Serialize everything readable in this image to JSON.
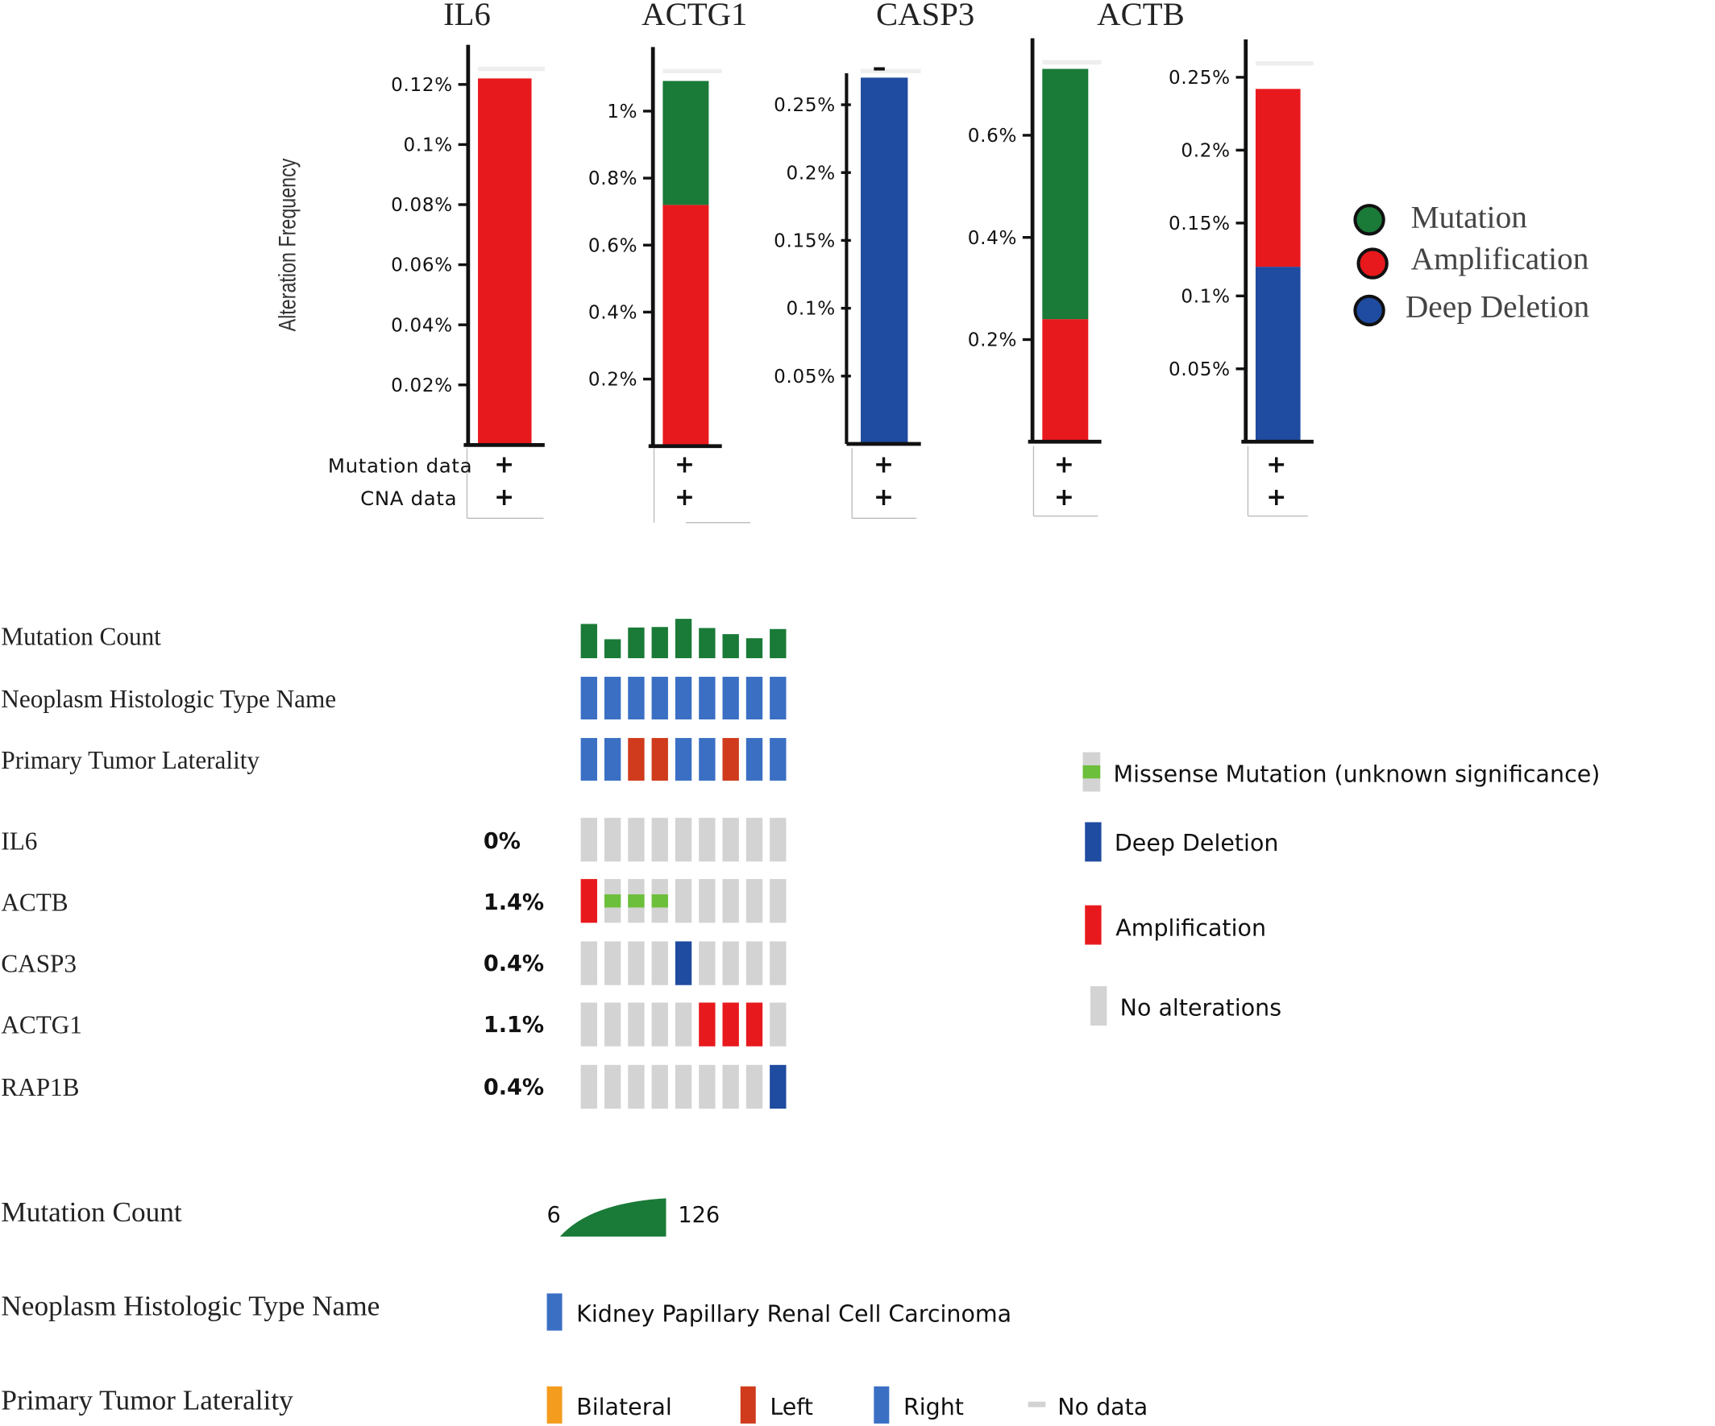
{
  "chart_data": [
    {
      "type": "bar",
      "stacked": true,
      "ylabel": "Alteration Frequency",
      "legend": {
        "placement": "right",
        "entries": [
          {
            "name": "Mutation",
            "color": "#1a7a38"
          },
          {
            "name": "Amplification",
            "color": "#e8191d"
          },
          {
            "name": "Deep Deletion",
            "color": "#1f4ba0"
          }
        ]
      },
      "annotation_rows": [
        "Mutation data",
        "CNA data"
      ],
      "panels": [
        {
          "title": "IL6",
          "yticks": [
            "0.02%",
            "0.04%",
            "0.06%",
            "0.08%",
            "0.1%",
            "0.12%"
          ],
          "ytick_values": [
            0.02,
            0.04,
            0.06,
            0.08,
            0.1,
            0.12
          ],
          "ylim": [
            0,
            0.123
          ],
          "segments": [
            {
              "name": "Amplification",
              "value": 0.122
            }
          ],
          "annotations": [
            "+",
            "+"
          ]
        },
        {
          "title": "ACTG1",
          "yticks": [
            "0.2%",
            "0.4%",
            "0.6%",
            "0.8%",
            "1%"
          ],
          "ytick_values": [
            0.2,
            0.4,
            0.6,
            0.8,
            1.0
          ],
          "ylim": [
            0,
            1.1
          ],
          "segments": [
            {
              "name": "Amplification",
              "value": 0.72
            },
            {
              "name": "Mutation",
              "value": 0.37
            }
          ],
          "annotations": [
            "+",
            "+"
          ]
        },
        {
          "title": "CASP3",
          "yticks": [
            "0.05%",
            "0.1%",
            "0.15%",
            "0.2%",
            "0.25%"
          ],
          "ytick_values": [
            0.05,
            0.1,
            0.15,
            0.2,
            0.25
          ],
          "ylim": [
            0,
            0.27
          ],
          "segments": [
            {
              "name": "Deep Deletion",
              "value": 0.27
            }
          ],
          "annotations": [
            "+",
            "+"
          ]
        },
        {
          "title": "ACTB",
          "yticks": [
            "0.2%",
            "0.4%",
            "0.6%"
          ],
          "ytick_values": [
            0.2,
            0.4,
            0.6
          ],
          "ylim": [
            0,
            0.73
          ],
          "segments": [
            {
              "name": "Amplification",
              "value": 0.24
            },
            {
              "name": "Mutation",
              "value": 0.49
            }
          ],
          "annotations": [
            "+",
            "+"
          ]
        },
        {
          "title": "",
          "yticks": [
            "0.05%",
            "0.1%",
            "0.15%",
            "0.2%",
            "0.25%"
          ],
          "ytick_values": [
            0.05,
            0.1,
            0.15,
            0.2,
            0.25
          ],
          "ylim": [
            0,
            0.255
          ],
          "segments": [
            {
              "name": "Deep Deletion",
              "value": 0.12
            },
            {
              "name": "Amplification",
              "value": 0.122
            }
          ],
          "annotations": [
            "+",
            "+"
          ]
        }
      ]
    },
    {
      "type": "heatmap",
      "samples": 9,
      "clinical_tracks": [
        {
          "label": "Mutation Count",
          "kind": "bars",
          "values": [
            50,
            20,
            43,
            44,
            60,
            42,
            30,
            22,
            40
          ]
        },
        {
          "label": "Neoplasm Histologic Type Name",
          "kind": "cells",
          "values": [
            "KIRP",
            "KIRP",
            "KIRP",
            "KIRP",
            "KIRP",
            "KIRP",
            "KIRP",
            "KIRP",
            "KIRP"
          ]
        },
        {
          "label": "Primary Tumor Laterality",
          "kind": "cells",
          "values": [
            "Right",
            "Right",
            "Left",
            "Left",
            "Right",
            "Right",
            "Left",
            "Right",
            "Right"
          ]
        }
      ],
      "genes": [
        {
          "label": "IL6",
          "pct": "0%",
          "alterations": [
            "none",
            "none",
            "none",
            "none",
            "none",
            "none",
            "none",
            "none",
            "none"
          ]
        },
        {
          "label": "ACTB",
          "pct": "1.4%",
          "alterations": [
            "amp",
            "missense",
            "missense",
            "missense",
            "none",
            "none",
            "none",
            "none",
            "none"
          ]
        },
        {
          "label": "CASP3",
          "pct": "0.4%",
          "alterations": [
            "none",
            "none",
            "none",
            "none",
            "del",
            "none",
            "none",
            "none",
            "none"
          ]
        },
        {
          "label": "ACTG1",
          "pct": "1.1%",
          "alterations": [
            "none",
            "none",
            "none",
            "none",
            "none",
            "amp",
            "amp",
            "amp",
            "none"
          ]
        },
        {
          "label": "RAP1B",
          "pct": "0.4%",
          "alterations": [
            "none",
            "none",
            "none",
            "none",
            "none",
            "none",
            "none",
            "none",
            "del"
          ]
        }
      ],
      "legend": [
        {
          "key": "missense",
          "label": "Missense Mutation (unknown significance)"
        },
        {
          "key": "del",
          "label": "Deep Deletion"
        },
        {
          "key": "amp",
          "label": "Amplification"
        },
        {
          "key": "none",
          "label": "No alterations"
        }
      ]
    }
  ],
  "bottom_legend": {
    "mutation_count": {
      "label": "Mutation Count",
      "min": "6",
      "max": "126"
    },
    "histologic": {
      "label": "Neoplasm Histologic Type Name",
      "entries": [
        "Kidney Papillary Renal Cell Carcinoma"
      ]
    },
    "laterality": {
      "label": "Primary Tumor Laterality",
      "entries": [
        "Bilateral",
        "Left",
        "Right",
        "No data"
      ]
    }
  },
  "colors": {
    "mutation": "#1a7a38",
    "amplification": "#e8191d",
    "deep_deletion": "#1f4ba0",
    "clinical_blue": "#3a6fc4",
    "clinical_left": "#cf3b1c",
    "bilateral": "#f39c1e",
    "no_alt": "#d3d3d3",
    "missense": "#6cbf3a",
    "mutcount_green": "#1a7a38"
  }
}
